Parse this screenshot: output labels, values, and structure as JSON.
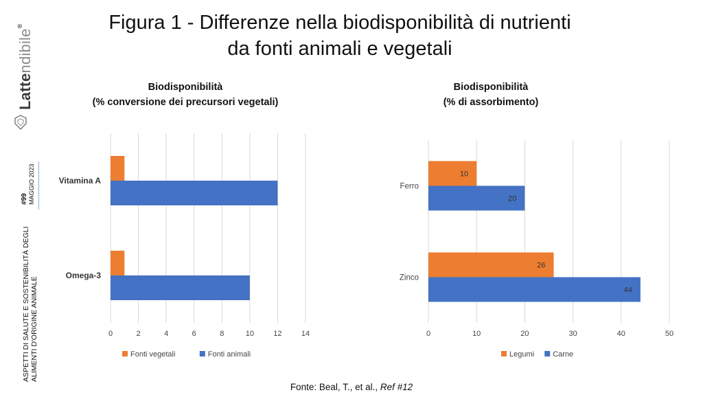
{
  "title_line1": "Figura 1 - Differenze nella biodisponibilità di nutrienti",
  "title_line2": "da fonti animali e vegetali",
  "sidebar": {
    "brand_bold": "Latte",
    "brand_light": "ndibile",
    "brand_mark": "®",
    "issue": "#99",
    "date": "MAGGIO 2023",
    "topic_line1": "ASPETTI DI SALUTE E SOSTENIBILITÀ DEGLI",
    "topic_line2": "ALIMENTI D'ORIGINE ANIMALE"
  },
  "source_prefix": "Fonte: Beal, T., et al., ",
  "source_ref": "Ref #12",
  "chart_data": [
    {
      "type": "bar",
      "orientation": "horizontal",
      "title_line1": "Biodisponibilità",
      "title_line2": "(% conversione dei precursori vegetali)",
      "categories": [
        "Vitamina A",
        "Omega-3"
      ],
      "series": [
        {
          "name": "Fonti vegetali",
          "color": "#ED7D31",
          "values": [
            1,
            1
          ]
        },
        {
          "name": "Fonti animali",
          "color": "#4472C4",
          "values": [
            12,
            10
          ]
        }
      ],
      "xlim": [
        0,
        14
      ],
      "xticks": [
        "0",
        "2",
        "4",
        "6",
        "8",
        "10",
        "12",
        "14"
      ],
      "grid": "vertical",
      "legend": "bottom",
      "data_labels": false
    },
    {
      "type": "bar",
      "orientation": "horizontal",
      "title_line1": "Biodisponibilità",
      "title_line2": "(% di assorbimento)",
      "categories": [
        "Ferro",
        "Zinco"
      ],
      "series": [
        {
          "name": "Legumi",
          "color": "#ED7D31",
          "values": [
            10,
            26
          ]
        },
        {
          "name": "Carne",
          "color": "#4472C4",
          "values": [
            20,
            44
          ]
        }
      ],
      "xlim": [
        0,
        50
      ],
      "xticks": [
        "0",
        "10",
        "20",
        "30",
        "40",
        "50"
      ],
      "grid": "vertical",
      "legend": "bottom",
      "data_labels": true
    }
  ]
}
